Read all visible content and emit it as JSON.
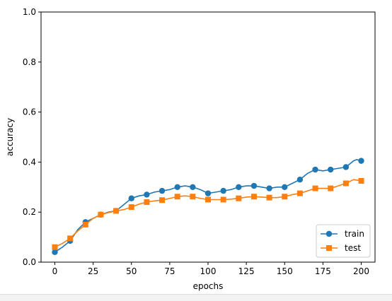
{
  "chart_data": {
    "type": "line",
    "title": "",
    "xlabel": "epochs",
    "ylabel": "accuracy",
    "xlim": [
      -9,
      209
    ],
    "ylim": [
      0.0,
      1.0
    ],
    "x_ticks": [
      0,
      25,
      50,
      75,
      100,
      125,
      150,
      175,
      200
    ],
    "y_ticks": [
      0.0,
      0.2,
      0.4,
      0.6,
      0.8,
      1.0
    ],
    "legend_position": "lower-right",
    "grid": false,
    "series": [
      {
        "name": "train",
        "color": "#1f77b4",
        "marker": "circle",
        "x": [
          0,
          5,
          10,
          15,
          20,
          25,
          30,
          35,
          40,
          45,
          50,
          55,
          60,
          65,
          70,
          75,
          80,
          85,
          90,
          95,
          100,
          105,
          110,
          115,
          120,
          125,
          130,
          135,
          140,
          145,
          150,
          155,
          160,
          165,
          170,
          175,
          180,
          185,
          190,
          195,
          197,
          200
        ],
        "y": [
          0.04,
          0.06,
          0.085,
          0.13,
          0.16,
          0.175,
          0.19,
          0.2,
          0.205,
          0.23,
          0.255,
          0.265,
          0.27,
          0.28,
          0.285,
          0.29,
          0.3,
          0.305,
          0.3,
          0.29,
          0.275,
          0.28,
          0.285,
          0.29,
          0.3,
          0.305,
          0.305,
          0.3,
          0.295,
          0.3,
          0.3,
          0.315,
          0.33,
          0.355,
          0.37,
          0.365,
          0.37,
          0.375,
          0.38,
          0.405,
          0.41,
          0.405
        ],
        "marker_x": [
          0,
          10,
          20,
          30,
          40,
          50,
          60,
          70,
          80,
          90,
          100,
          110,
          120,
          130,
          140,
          150,
          160,
          170,
          180,
          190,
          200
        ],
        "marker_y": [
          0.04,
          0.085,
          0.16,
          0.19,
          0.205,
          0.255,
          0.27,
          0.285,
          0.3,
          0.3,
          0.275,
          0.285,
          0.3,
          0.305,
          0.295,
          0.3,
          0.33,
          0.37,
          0.37,
          0.38,
          0.405
        ]
      },
      {
        "name": "test",
        "color": "#ff7f0e",
        "marker": "square",
        "x": [
          0,
          5,
          10,
          15,
          20,
          25,
          30,
          35,
          40,
          45,
          50,
          55,
          60,
          65,
          70,
          75,
          80,
          85,
          90,
          95,
          100,
          105,
          110,
          115,
          120,
          125,
          130,
          135,
          140,
          145,
          150,
          155,
          160,
          165,
          170,
          175,
          180,
          185,
          190,
          195,
          200
        ],
        "y": [
          0.06,
          0.075,
          0.095,
          0.125,
          0.15,
          0.175,
          0.19,
          0.198,
          0.205,
          0.21,
          0.22,
          0.232,
          0.24,
          0.245,
          0.248,
          0.255,
          0.262,
          0.265,
          0.262,
          0.255,
          0.25,
          0.25,
          0.25,
          0.252,
          0.255,
          0.26,
          0.262,
          0.26,
          0.258,
          0.258,
          0.262,
          0.27,
          0.275,
          0.285,
          0.295,
          0.295,
          0.295,
          0.305,
          0.315,
          0.33,
          0.325
        ],
        "marker_x": [
          0,
          10,
          20,
          30,
          40,
          50,
          60,
          70,
          80,
          90,
          100,
          110,
          120,
          130,
          140,
          150,
          160,
          170,
          180,
          190,
          200
        ],
        "marker_y": [
          0.06,
          0.095,
          0.15,
          0.19,
          0.205,
          0.22,
          0.24,
          0.248,
          0.262,
          0.262,
          0.25,
          0.25,
          0.255,
          0.262,
          0.258,
          0.262,
          0.275,
          0.295,
          0.295,
          0.315,
          0.325
        ]
      }
    ]
  }
}
